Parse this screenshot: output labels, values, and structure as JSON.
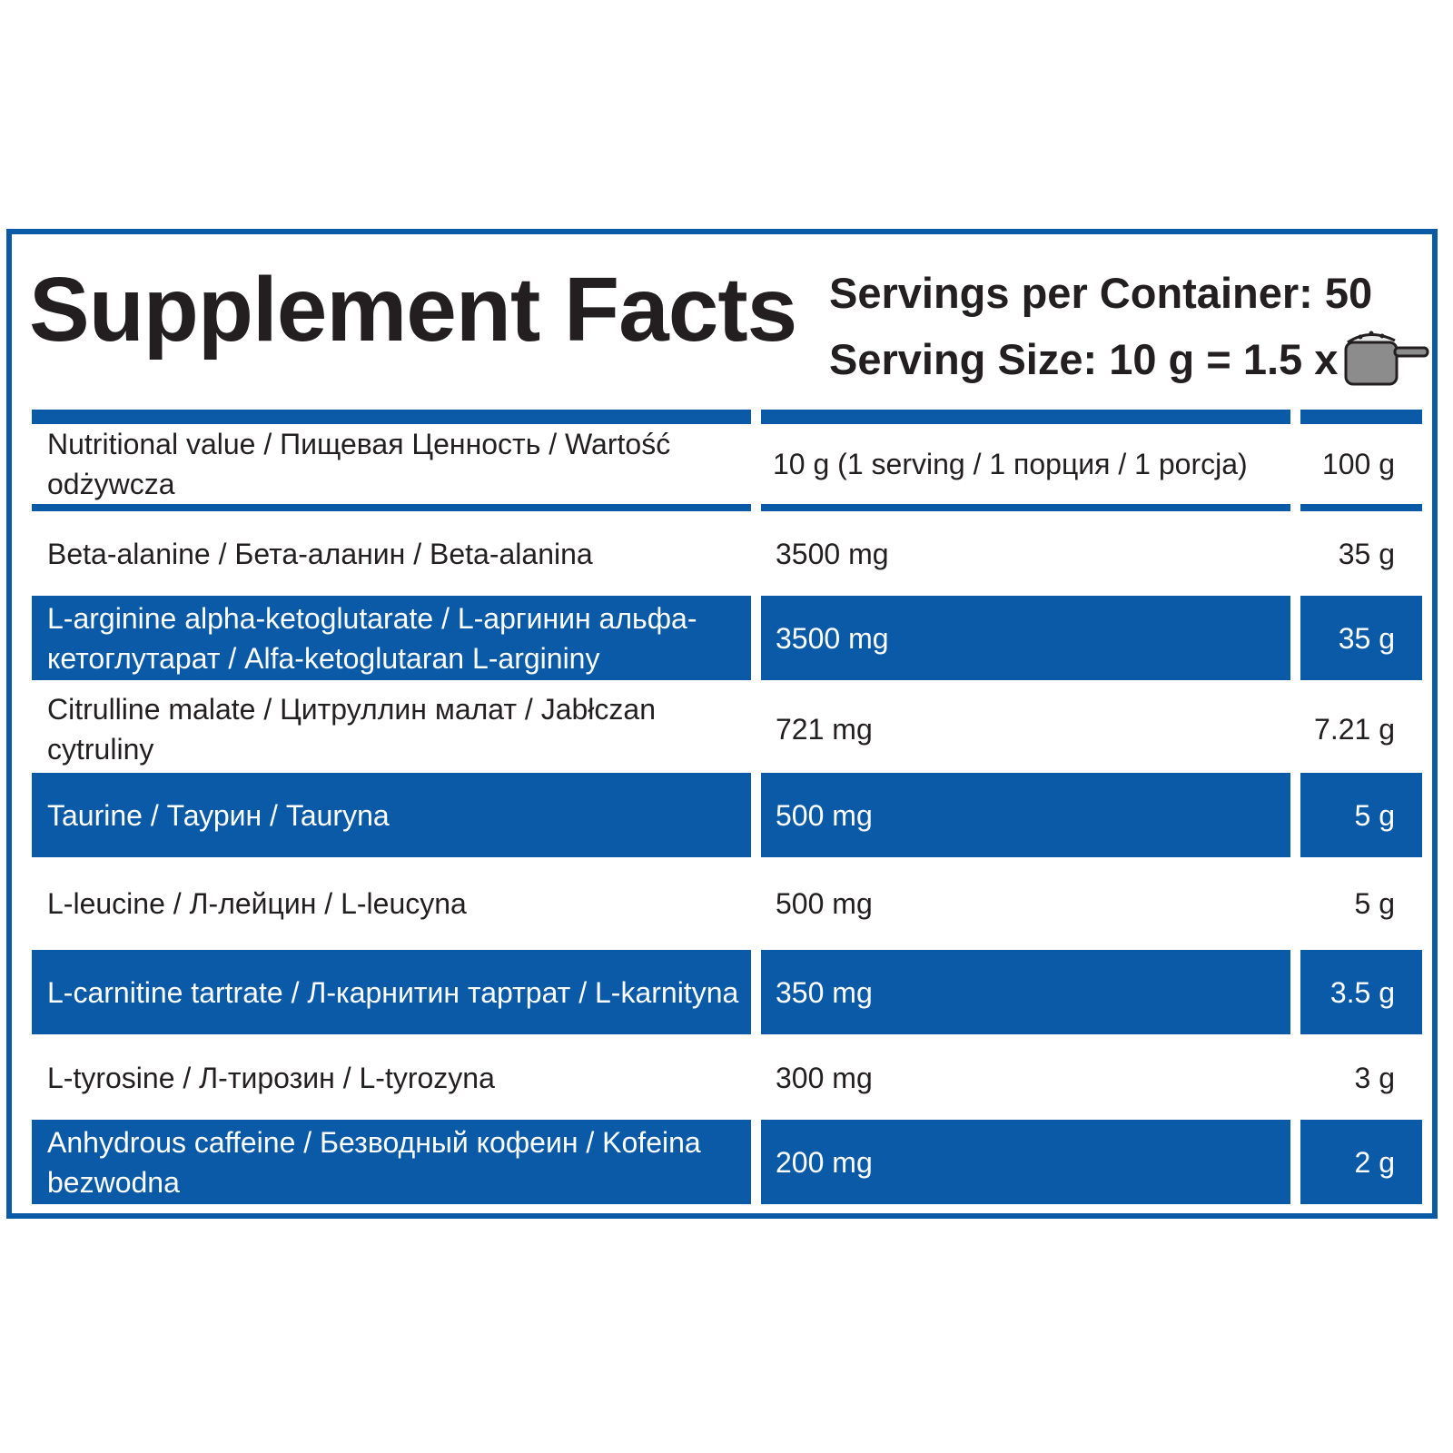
{
  "header": {
    "title": "Supplement Facts",
    "servings_per_container": "Servings per Container: 50",
    "serving_size": "Serving Size: 10 g = 1.5 x",
    "scoop_icon": "measuring-scoop-icon"
  },
  "table": {
    "header": {
      "name": "Nutritional value / Пищевая Ценность / Wartość odżywcza",
      "per_serving": "10 g (1 serving / 1 порция / 1 porcja)",
      "per_100g": "100 g"
    },
    "rows": [
      {
        "name": "Beta-alanine / Бета-аланин / Beta-alanina",
        "per_serving": "3500 mg",
        "per_100g": "35 g"
      },
      {
        "name": "L-arginine alpha-ketoglutarate / L-аргинин альфа-кетоглутарат / Alfa-ketoglutaran L-argininy",
        "per_serving": "3500 mg",
        "per_100g": "35 g"
      },
      {
        "name": "Citrulline malate / Цитруллин малат / Jabłczan cytruliny",
        "per_serving": "721 mg",
        "per_100g": "7.21 g"
      },
      {
        "name": "Taurine / Таурин / Tauryna",
        "per_serving": "500 mg",
        "per_100g": "5 g"
      },
      {
        "name": "L-leucine / Л-лейцин /  L-leucyna",
        "per_serving": "500 mg",
        "per_100g": "5 g"
      },
      {
        "name": "L-carnitine tartrate / Л-карнитин тартрат / L-karnityna",
        "per_serving": "350 mg",
        "per_100g": "3.5 g"
      },
      {
        "name": "L-tyrosine /  Л-тирозин / L-tyrozyna",
        "per_serving": "300 mg",
        "per_100g": "3 g"
      },
      {
        "name": "Anhydrous caffeine  / Безводный кофеин / Kofeina bezwodna",
        "per_serving": "200 mg",
        "per_100g": "2 g"
      }
    ]
  },
  "colors": {
    "accent_blue": "#0a5aa8",
    "text": "#231f20"
  }
}
